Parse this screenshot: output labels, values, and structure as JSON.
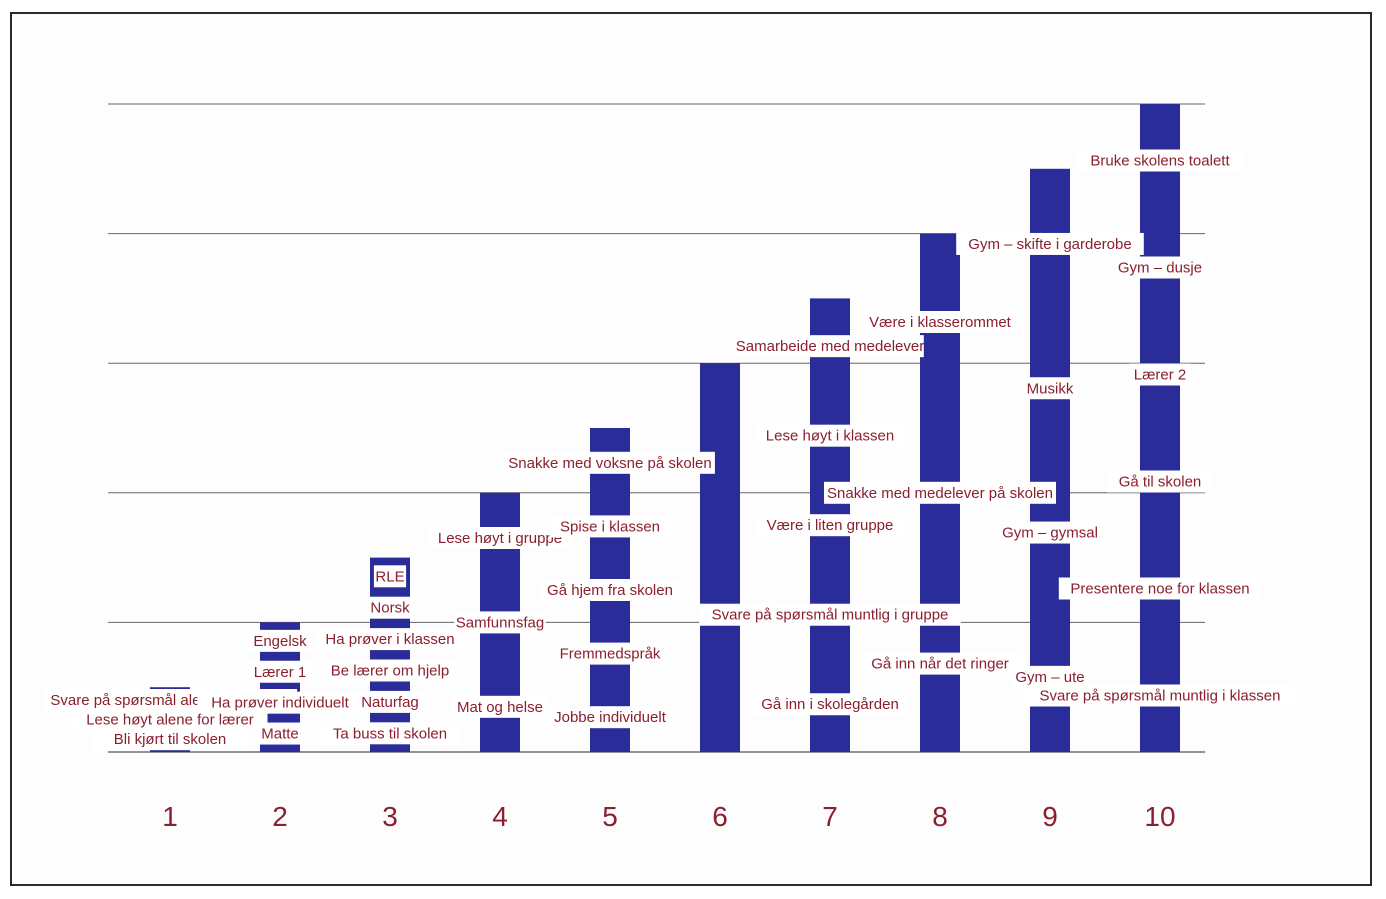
{
  "chart_data": {
    "type": "bar",
    "categories": [
      "1",
      "2",
      "3",
      "4",
      "5",
      "6",
      "7",
      "8",
      "9",
      "10"
    ],
    "values": [
      1,
      2,
      3,
      4,
      5,
      6,
      7,
      8,
      9,
      10
    ],
    "grid": true,
    "legend": "none",
    "bar_color": "#2a2c9a",
    "label_color": "#8b1f2f",
    "bar_labels": [
      [
        "Bli kjørt til skolen",
        "Lese høyt alene for lærer",
        "Svare på spørsmål alene med lærer"
      ],
      [
        "Matte",
        "Ha prøver individuelt",
        "Lærer 1",
        "Engelsk"
      ],
      [
        "Ta buss til skolen",
        "Naturfag",
        "Be lærer om hjelp",
        "Ha prøver i klassen",
        "Norsk",
        "RLE"
      ],
      [
        "Mat og helse",
        "Samfunnsfag",
        "Lese høyt i gruppe"
      ],
      [
        "Jobbe individuelt",
        "Fremmedspråk",
        "Gå hjem fra skolen",
        "Spise i klassen",
        "Snakke med voksne på skolen"
      ],
      [],
      [
        "Gå inn i skolegården",
        "Svare på spørsmål muntlig i gruppe",
        "Være i liten gruppe",
        "Lese høyt i klassen",
        "Samarbeide med medelever"
      ],
      [
        "Gå inn når det ringer",
        "Snakke med medelever på skolen",
        "Være i klasserommet"
      ],
      [
        "Gym – ute",
        "Gym – gymsal",
        "Musikk",
        "Gym – skifte i garderobe"
      ],
      [
        "Svare på spørsmål muntlig i klassen",
        "Presentere noe for klassen",
        "Gå til skolen",
        "Lærer 2",
        "Gym – dusje",
        "Bruke skolens toalett"
      ]
    ]
  }
}
